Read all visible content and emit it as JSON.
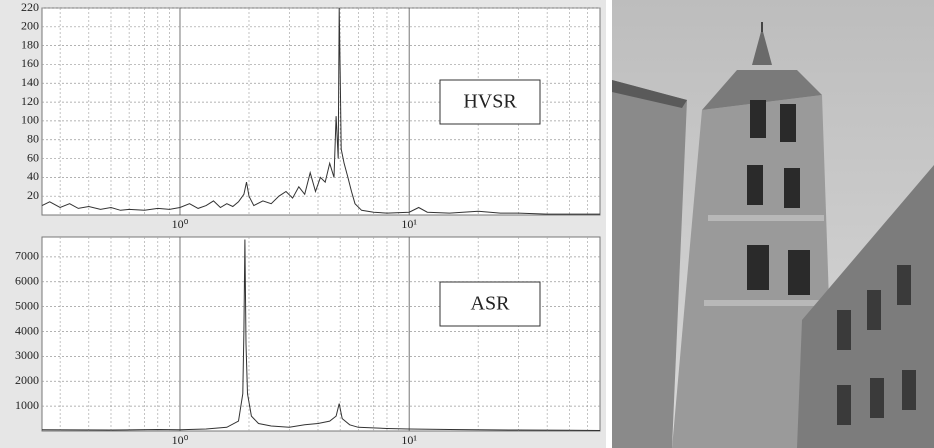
{
  "chart_data": [
    {
      "type": "line",
      "annotation": "HVSR",
      "color": "#333333",
      "xscale": "log",
      "grid": true,
      "xlim": [
        0.25,
        68
      ],
      "xticks": [
        {
          "value": 1,
          "label": "10⁰"
        },
        {
          "value": 10,
          "label": "10¹"
        }
      ],
      "ylim": [
        0,
        220
      ],
      "yticks": [
        20,
        40,
        60,
        80,
        100,
        120,
        140,
        160,
        180,
        200,
        220
      ],
      "x": [
        0.25,
        0.27,
        0.3,
        0.33,
        0.36,
        0.4,
        0.45,
        0.5,
        0.55,
        0.6,
        0.7,
        0.8,
        0.9,
        1.0,
        1.1,
        1.2,
        1.3,
        1.4,
        1.5,
        1.6,
        1.7,
        1.8,
        1.9,
        1.95,
        2.0,
        2.1,
        2.3,
        2.5,
        2.7,
        2.9,
        3.1,
        3.3,
        3.5,
        3.7,
        3.9,
        4.1,
        4.3,
        4.5,
        4.7,
        4.8,
        4.9,
        4.95,
        5.0,
        5.05,
        5.2,
        5.4,
        5.6,
        5.8,
        6.2,
        7,
        8,
        10,
        11,
        12,
        15,
        20,
        25,
        30,
        40,
        50,
        68
      ],
      "values": [
        10,
        14,
        8,
        12,
        7,
        9,
        6,
        8,
        5,
        6,
        5,
        7,
        6,
        8,
        12,
        7,
        10,
        15,
        8,
        12,
        9,
        14,
        22,
        35,
        20,
        10,
        15,
        12,
        20,
        25,
        18,
        30,
        22,
        45,
        25,
        40,
        35,
        55,
        40,
        105,
        60,
        220,
        150,
        70,
        55,
        40,
        25,
        12,
        5,
        3,
        2,
        3,
        8,
        3,
        2,
        4,
        2,
        2,
        1,
        1,
        1
      ]
    },
    {
      "type": "line",
      "annotation": "ASR",
      "color": "#333333",
      "xscale": "log",
      "grid": true,
      "xlim": [
        0.25,
        68
      ],
      "xticks": [
        {
          "value": 1,
          "label": "10⁰"
        },
        {
          "value": 10,
          "label": "10¹"
        }
      ],
      "ylim": [
        0,
        7800
      ],
      "yticks": [
        1000,
        2000,
        3000,
        4000,
        5000,
        6000,
        7000
      ],
      "x": [
        0.25,
        0.5,
        0.8,
        1.0,
        1.3,
        1.6,
        1.8,
        1.88,
        1.9,
        1.92,
        1.94,
        1.97,
        2.05,
        2.2,
        2.5,
        3,
        3.5,
        4,
        4.5,
        4.8,
        4.95,
        5.1,
        5.5,
        6,
        8,
        10,
        15,
        20,
        30,
        50,
        68
      ],
      "values": [
        50,
        40,
        60,
        50,
        80,
        150,
        400,
        1500,
        4000,
        7700,
        3500,
        1500,
        600,
        300,
        200,
        150,
        250,
        300,
        400,
        600,
        1100,
        500,
        250,
        150,
        100,
        80,
        60,
        50,
        40,
        30,
        20
      ]
    }
  ]
}
